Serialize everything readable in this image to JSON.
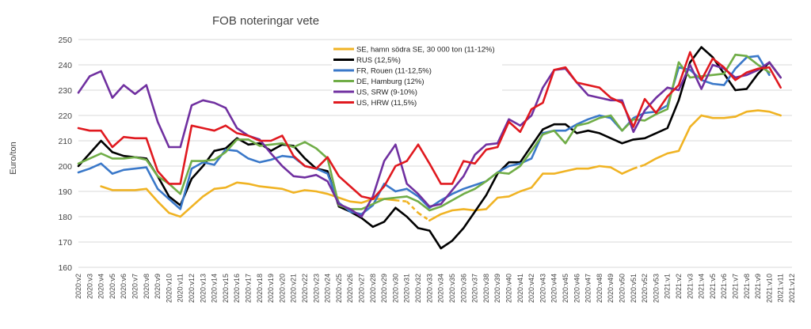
{
  "chart_data": {
    "type": "line",
    "title": "FOB noteringar vete",
    "xlabel": "",
    "ylabel": "Euro/ton",
    "ylim": [
      160,
      250
    ],
    "yticks": [
      160,
      170,
      180,
      190,
      200,
      210,
      220,
      230,
      240,
      250
    ],
    "grid": true,
    "legend_position": "top-center",
    "categories": [
      "2020:v2",
      "2020:v3",
      "2020:v4",
      "2020:v5",
      "2020:v6",
      "2020:v7",
      "2020:v8",
      "2020:v9",
      "2020:v10",
      "2020:v11",
      "2020:v12",
      "2020:v13",
      "2020:v14",
      "2020:v15",
      "2020:v16",
      "2020:v17",
      "2020:v18",
      "2020:v19",
      "2020:v20",
      "2020:v21",
      "2020:v22",
      "2020:v23",
      "2020:v24",
      "2020:v25",
      "2020:v26",
      "2020:v27",
      "2020:v28",
      "2020:v29",
      "2020:v30",
      "2020:v31",
      "2020:v32",
      "2020:v33",
      "2020:v34",
      "2020:v35",
      "2020:v36",
      "2020:v37",
      "2020:v38",
      "2020:v39",
      "2020:v40",
      "2020:v41",
      "2020:v42",
      "2020:v43",
      "2020:v44",
      "2020:v45",
      "2020:v46",
      "2020:v47",
      "2020:v48",
      "2020:v49",
      "2020:v50",
      "2020:v51",
      "2020:v52",
      "2020:v53",
      "2021:v1",
      "2021:v2",
      "2021:v3",
      "2021:v4",
      "2021:v5",
      "2021:v6",
      "2021:v7",
      "2021:v8",
      "2021:v9",
      "2021:v10",
      "2021:v11",
      "2021:v12"
    ],
    "series": [
      {
        "name": "SE, hamn södra SE, 30 000 ton (11-12%)",
        "color": "#f0b323",
        "values": [
          null,
          null,
          192,
          190.5,
          190.5,
          190.5,
          191,
          186,
          181.5,
          180,
          184,
          188,
          191,
          191.5,
          193.5,
          193,
          192,
          191.5,
          191,
          189.5,
          190.5,
          190,
          189,
          187.5,
          186,
          185.5,
          187,
          187,
          186.5,
          186,
          181.5,
          178.5,
          181,
          182.5,
          183,
          182.5,
          183,
          187.5,
          188,
          190,
          191.5,
          197,
          197,
          198,
          199,
          199,
          200,
          199.5,
          197,
          199,
          200.5,
          203,
          205,
          206,
          215.5,
          220,
          219,
          219,
          219.5,
          221.5,
          222,
          221.5,
          220,
          null
        ],
        "dashed_segments": [
          [
            28,
            31
          ],
          [
            49,
            50
          ]
        ]
      },
      {
        "name": "RUS (12,5%)",
        "color": "#000000",
        "values": [
          200,
          205,
          210,
          205.5,
          204,
          203.5,
          203,
          196,
          188,
          184.5,
          195,
          200,
          206,
          207,
          211,
          208.5,
          209,
          206,
          208.5,
          208,
          203,
          199,
          198,
          184,
          182,
          179.5,
          176,
          178,
          183.5,
          180,
          175.5,
          174.5,
          167.5,
          170.5,
          175.5,
          182,
          188.5,
          197,
          201.5,
          201.5,
          208,
          214.5,
          216.5,
          216.5,
          213,
          214,
          213,
          211,
          209,
          210.5,
          211,
          213,
          215,
          226,
          241,
          247,
          243,
          236.5,
          230,
          230.5,
          236.5,
          241,
          235,
          null
        ]
      },
      {
        "name": "FR, Rouen (11-12,5%)",
        "color": "#3a78c9",
        "values": [
          197.5,
          199,
          201,
          197,
          198.5,
          199,
          199.5,
          191,
          187,
          183,
          199,
          201.5,
          200.5,
          206.5,
          206,
          203,
          201.5,
          202.5,
          204,
          203.5,
          200,
          199,
          197,
          185.5,
          182,
          181,
          184.5,
          193,
          190,
          191,
          188,
          183.5,
          186.5,
          189,
          191,
          192.5,
          194,
          197.5,
          200,
          201,
          203,
          213,
          214,
          214,
          216.5,
          218.5,
          220,
          219,
          214,
          219,
          221,
          221.5,
          224,
          239,
          238,
          234,
          232.5,
          232,
          238.5,
          243,
          243.5,
          236,
          null,
          null
        ]
      },
      {
        "name": "DE, Hamburg (12%)",
        "color": "#70ad47",
        "values": [
          201,
          203,
          205,
          203,
          203,
          203.5,
          202.5,
          196,
          193,
          189,
          202,
          202,
          202.5,
          205.5,
          210.5,
          210.5,
          208,
          208.5,
          209,
          207.5,
          209.5,
          207,
          203,
          184.5,
          183,
          183,
          185,
          187,
          187.5,
          188,
          186,
          182.5,
          184,
          186.5,
          189,
          191,
          194,
          197.5,
          197,
          200,
          206,
          212.5,
          214,
          209,
          216,
          217,
          219,
          220,
          214,
          218.5,
          218,
          220.5,
          222.5,
          241,
          235,
          235.5,
          236,
          236.5,
          244,
          243.5,
          240,
          237,
          null,
          null
        ]
      },
      {
        "name": "US, SRW (9-10%)",
        "color": "#7030a0",
        "values": [
          229,
          235.5,
          237.5,
          227,
          232,
          228.5,
          232,
          217.5,
          207.5,
          207.5,
          224,
          226,
          225,
          223,
          215,
          212,
          210.5,
          205,
          200,
          196,
          195.5,
          196.5,
          194,
          185,
          183,
          180,
          188,
          202,
          208.5,
          193,
          189,
          184,
          185,
          190.5,
          196,
          204.5,
          208.5,
          209,
          218.5,
          216,
          220,
          231,
          238,
          238.5,
          233,
          228,
          227,
          226,
          226,
          213.5,
          222,
          227,
          231,
          230,
          240,
          230.5,
          240,
          238.5,
          235,
          236,
          238,
          241,
          235,
          null
        ]
      },
      {
        "name": "US, HRW (11,5%)",
        "color": "#e0191f",
        "values": [
          215,
          214,
          214,
          207.5,
          211.5,
          211,
          211,
          198,
          193,
          193,
          216,
          215,
          214,
          216,
          213,
          212,
          210,
          210,
          212,
          204,
          200,
          199,
          203.5,
          196,
          192,
          188,
          187,
          192,
          200,
          202,
          208.5,
          201,
          193,
          193,
          202,
          201,
          206.5,
          207.5,
          217.5,
          213.5,
          222.5,
          225,
          238,
          239,
          233,
          232,
          231,
          227,
          225,
          215.5,
          226.5,
          221,
          227.5,
          232,
          245,
          234,
          242.5,
          239,
          234,
          237,
          238.5,
          239,
          231,
          null
        ]
      }
    ]
  }
}
